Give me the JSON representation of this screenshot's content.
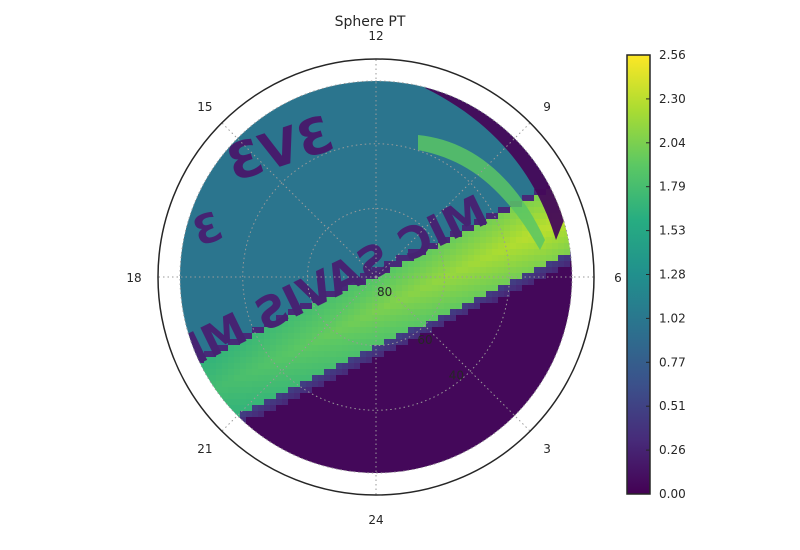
{
  "chart_data": {
    "type": "heatmap",
    "projection": "polar",
    "title": "Sphere PT",
    "theta_tick_labels": [
      "12",
      "9",
      "6",
      "3",
      "24",
      "21",
      "18",
      "15"
    ],
    "radial_tick_labels": [
      "80",
      "60",
      "40"
    ],
    "grid": true,
    "colormap": "viridis",
    "colorbar": {
      "min": 0.0,
      "max": 2.56,
      "tick_labels": [
        "0.00",
        "0.26",
        "0.51",
        "0.77",
        "1.02",
        "1.28",
        "1.53",
        "1.79",
        "2.04",
        "2.30",
        "2.56"
      ],
      "stops": [
        "#440154",
        "#472c7a",
        "#3b518b",
        "#2c718e",
        "#21908d",
        "#27ad81",
        "#5cc863",
        "#aadc32",
        "#fde725"
      ]
    },
    "field_summary": {
      "upper_left_region_value": 1.0,
      "lower_right_region_value": 0.05,
      "diagonal_band_value_range": [
        1.3,
        2.56
      ],
      "band_edge_value": 0.3,
      "embedded_text": [
        "MIC SAVIS MIE",
        "3V3",
        "3"
      ]
    }
  }
}
